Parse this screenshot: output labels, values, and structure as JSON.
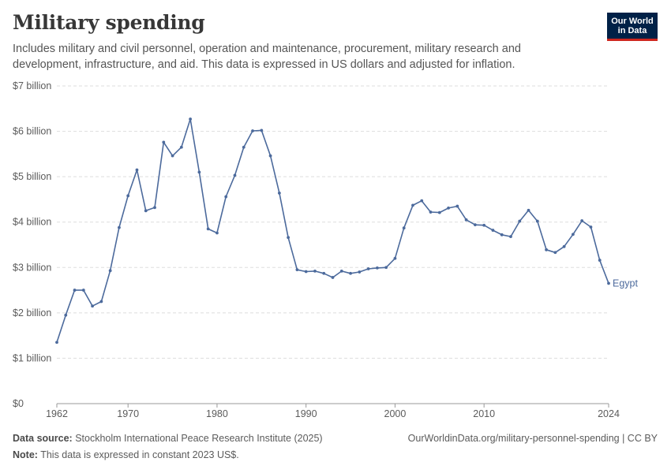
{
  "header": {
    "title": "Military spending",
    "subtitle": "Includes military and civil personnel, operation and maintenance, procurement, military research and development, infrastructure, and aid. This data is expressed in US dollars and adjusted for inflation."
  },
  "logo": {
    "line1": "Our World",
    "line2": "in Data",
    "bg_color": "#002147",
    "accent_color": "#ce261e"
  },
  "footer": {
    "source_label": "Data source:",
    "source_text": "Stockholm International Peace Research Institute (2025)",
    "url": "OurWorldinData.org/military-personnel-spending | CC BY",
    "note_label": "Note:",
    "note_text": "This data is expressed in constant 2023 US$."
  },
  "colors": {
    "series": "#4c6a9c",
    "grid": "#dddddd",
    "axis": "#999999",
    "text": "#5b5b5b"
  },
  "chart_data": {
    "type": "line",
    "xlim": [
      1962,
      2024
    ],
    "ylim": [
      0,
      7000000000
    ],
    "x_ticks": [
      1962,
      1970,
      1980,
      1990,
      2000,
      2010,
      2024
    ],
    "y_ticks": [
      {
        "value": 0,
        "label": "$0"
      },
      {
        "value": 1000000000,
        "label": "$1 billion"
      },
      {
        "value": 2000000000,
        "label": "$2 billion"
      },
      {
        "value": 3000000000,
        "label": "$3 billion"
      },
      {
        "value": 4000000000,
        "label": "$4 billion"
      },
      {
        "value": 5000000000,
        "label": "$5 billion"
      },
      {
        "value": 6000000000,
        "label": "$6 billion"
      },
      {
        "value": 7000000000,
        "label": "$7 billion"
      }
    ],
    "grid": "horizontal-dashed",
    "series": [
      {
        "name": "Egypt",
        "x": [
          1962,
          1963,
          1964,
          1965,
          1966,
          1967,
          1968,
          1969,
          1970,
          1971,
          1972,
          1973,
          1974,
          1975,
          1976,
          1977,
          1978,
          1979,
          1980,
          1981,
          1982,
          1983,
          1984,
          1985,
          1986,
          1987,
          1988,
          1989,
          1990,
          1991,
          1992,
          1993,
          1994,
          1995,
          1996,
          1997,
          1998,
          1999,
          2000,
          2001,
          2002,
          2003,
          2004,
          2005,
          2006,
          2007,
          2008,
          2009,
          2010,
          2011,
          2012,
          2013,
          2014,
          2015,
          2016,
          2017,
          2018,
          2019,
          2020,
          2021,
          2022,
          2023,
          2024
        ],
        "values": [
          1350000000,
          1950000000,
          2500000000,
          2500000000,
          2150000000,
          2250000000,
          2930000000,
          3880000000,
          4580000000,
          5150000000,
          4250000000,
          4320000000,
          5760000000,
          5460000000,
          5650000000,
          6270000000,
          5100000000,
          3850000000,
          3760000000,
          4560000000,
          5030000000,
          5650000000,
          6010000000,
          6020000000,
          5460000000,
          4640000000,
          3660000000,
          2950000000,
          2910000000,
          2920000000,
          2870000000,
          2780000000,
          2920000000,
          2870000000,
          2900000000,
          2970000000,
          2990000000,
          3000000000,
          3200000000,
          3870000000,
          4370000000,
          4470000000,
          4220000000,
          4210000000,
          4310000000,
          4350000000,
          4050000000,
          3940000000,
          3930000000,
          3820000000,
          3720000000,
          3680000000,
          4020000000,
          4260000000,
          4020000000,
          3390000000,
          3330000000,
          3460000000,
          3730000000,
          4030000000,
          3890000000,
          3160000000,
          2650000000
        ]
      }
    ]
  }
}
